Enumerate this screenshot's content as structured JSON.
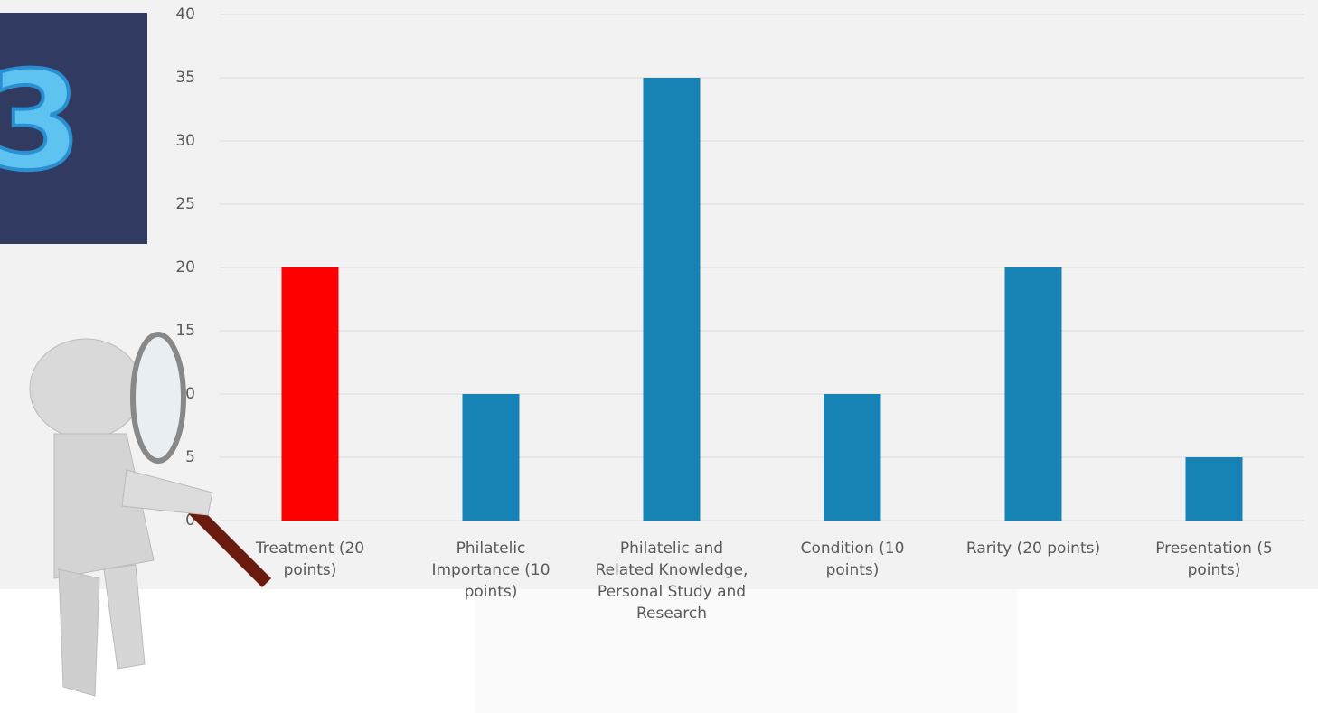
{
  "badge": "3",
  "chart_data": {
    "type": "bar",
    "categories": [
      "Treatment (20 points)",
      "Philatelic Importance (10 points)",
      "Philatelic and Related Knowledge, Personal Study and Research",
      "Condition (10 points)",
      "Rarity (20 points)",
      "Presentation (5 points)"
    ],
    "values": [
      20,
      10,
      35,
      10,
      20,
      5
    ],
    "colors": [
      "#ff0000",
      "#1782b4",
      "#1782b4",
      "#1782b4",
      "#1782b4",
      "#1782b4"
    ],
    "ylim": [
      0,
      40
    ],
    "yticks": [
      0,
      5,
      10,
      15,
      20,
      25,
      30,
      35,
      40
    ],
    "grid": true
  }
}
